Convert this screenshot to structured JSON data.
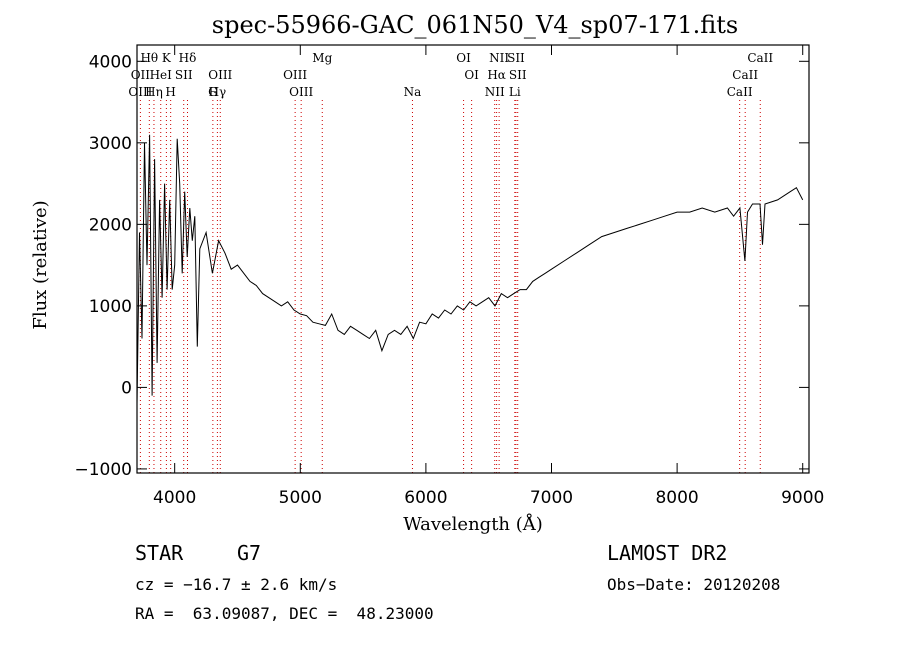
{
  "chart_data": {
    "type": "line",
    "title": "spec-55966-GAC_061N50_V4_sp07-171.fits",
    "xlabel": "Wavelength (Å)",
    "ylabel": "Flux (relative)",
    "xlim": [
      3700,
      9050
    ],
    "ylim": [
      -1050,
      4200
    ],
    "xticks": [
      4000,
      5000,
      6000,
      7000,
      8000,
      9000
    ],
    "yticks": [
      -1000,
      0,
      1000,
      2000,
      3000,
      4000
    ],
    "series": [
      {
        "x": [
          3700,
          3720,
          3740,
          3760,
          3780,
          3800,
          3820,
          3840,
          3860,
          3880,
          3900,
          3920,
          3940,
          3960,
          3980,
          4000,
          4020,
          4040,
          4060,
          4080,
          4100,
          4120,
          4140,
          4160,
          4180,
          4200,
          4250,
          4300,
          4350,
          4400,
          4450,
          4500,
          4550,
          4600,
          4650,
          4700,
          4750,
          4800,
          4850,
          4900,
          4950,
          5000,
          5050,
          5100,
          5150,
          5200,
          5250,
          5300,
          5350,
          5400,
          5450,
          5500,
          5550,
          5600,
          5650,
          5700,
          5750,
          5800,
          5850,
          5900,
          5950,
          6000,
          6050,
          6100,
          6150,
          6200,
          6250,
          6300,
          6350,
          6400,
          6450,
          6500,
          6550,
          6600,
          6650,
          6700,
          6750,
          6800,
          6850,
          6900,
          6950,
          7000,
          7100,
          7200,
          7300,
          7400,
          7500,
          7600,
          7700,
          7800,
          7900,
          8000,
          8100,
          8200,
          8300,
          8400,
          8450,
          8500,
          8540,
          8560,
          8600,
          8660,
          8680,
          8700,
          8800,
          8900,
          8950,
          9000
        ],
        "y": [
          -200,
          1900,
          600,
          3000,
          1500,
          3100,
          -100,
          2800,
          300,
          2300,
          1100,
          2500,
          1200,
          2300,
          1200,
          1500,
          3050,
          2500,
          1400,
          2400,
          1600,
          2200,
          1800,
          2100,
          500,
          1700,
          1900,
          1400,
          1800,
          1650,
          1450,
          1500,
          1400,
          1300,
          1250,
          1150,
          1100,
          1050,
          1000,
          1050,
          950,
          900,
          880,
          800,
          780,
          760,
          900,
          700,
          650,
          750,
          700,
          650,
          600,
          700,
          450,
          650,
          700,
          650,
          750,
          600,
          800,
          780,
          900,
          850,
          950,
          900,
          1000,
          950,
          1050,
          1000,
          1050,
          1100,
          1000,
          1150,
          1100,
          1150,
          1200,
          1200,
          1300,
          1350,
          1400,
          1450,
          1550,
          1650,
          1750,
          1850,
          1900,
          1950,
          2000,
          2050,
          2100,
          2150,
          2150,
          2200,
          2150,
          2200,
          2100,
          2200,
          1550,
          2150,
          2250,
          2250,
          1750,
          2250,
          2300,
          2400,
          2450,
          2300
        ]
      }
    ],
    "line_markers": [
      {
        "label": "Hθ",
        "x": 3798,
        "row": 0
      },
      {
        "label": "K",
        "x": 3934,
        "row": 0
      },
      {
        "label": "Hδ",
        "x": 4102,
        "row": 0
      },
      {
        "label": "OIII",
        "x": 4363,
        "row": 1
      },
      {
        "label": "Mg",
        "x": 5175,
        "row": 0
      },
      {
        "label": "OI",
        "x": 6300,
        "row": 0
      },
      {
        "label": "NII",
        "x": 6583,
        "row": 0
      },
      {
        "label": "SII",
        "x": 6717,
        "row": 0
      },
      {
        "label": "CaII",
        "x": 8662,
        "row": 0
      },
      {
        "label": "OII",
        "x": 3727,
        "row": 1
      },
      {
        "label": "HeI",
        "x": 3889,
        "row": 1
      },
      {
        "label": "SII",
        "x": 4072,
        "row": 1
      },
      {
        "label": "Hγ",
        "x": 4340,
        "row": 2
      },
      {
        "label": "OIII",
        "x": 4959,
        "row": 1
      },
      {
        "label": "OI",
        "x": 6364,
        "row": 1
      },
      {
        "label": "Hα",
        "x": 6563,
        "row": 1
      },
      {
        "label": "SII",
        "x": 6731,
        "row": 1
      },
      {
        "label": "CaII",
        "x": 8542,
        "row": 1
      },
      {
        "label": "OIII",
        "x": 3727,
        "row": 2
      },
      {
        "label": "Hη",
        "x": 3835,
        "row": 2
      },
      {
        "label": "H",
        "x": 3968,
        "row": 2
      },
      {
        "label": "G",
        "x": 4304,
        "row": 3
      },
      {
        "label": "OIII",
        "x": 5007,
        "row": 2
      },
      {
        "label": "Na",
        "x": 5893,
        "row": 2
      },
      {
        "label": "NII",
        "x": 6548,
        "row": 2
      },
      {
        "label": "Li",
        "x": 6708,
        "row": 2
      },
      {
        "label": "CaII",
        "x": 8498,
        "row": 2
      }
    ],
    "grid": false,
    "line_color": "#000000",
    "marker_color": "#cc0000"
  },
  "info": {
    "object_class": "STAR",
    "subclass": "G7",
    "survey": "LAMOST DR2",
    "redshift": "cz = −16.7 ± 2.6 km/s",
    "obs_date": "Obs−Date: 20120208",
    "coords": "RA =  63.09087, DEC =  48.23000"
  }
}
